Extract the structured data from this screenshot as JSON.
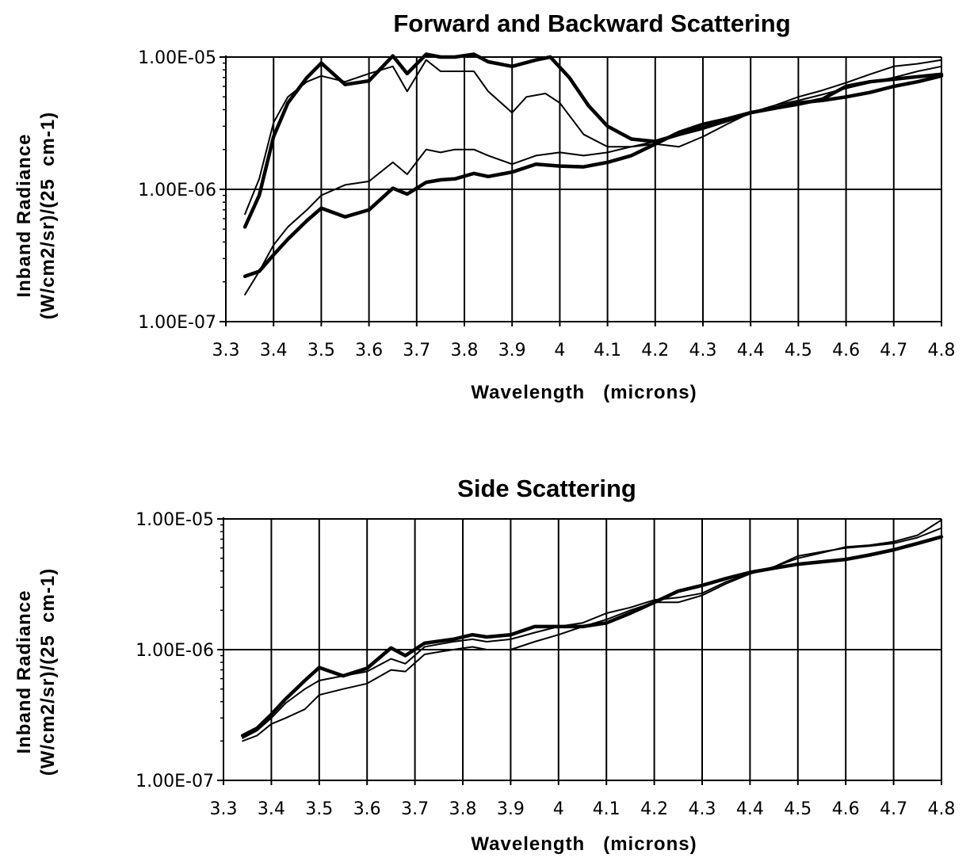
{
  "chart_data": [
    {
      "type": "line",
      "title": "Forward and Backward Scattering",
      "xlabel": "Wavelength   (microns)",
      "ylabel": [
        "Inband Radiance",
        "(W/cm2/sr)/(25  cm-1)"
      ],
      "yscale": "log",
      "xlim": [
        3.3,
        4.8
      ],
      "ylim": [
        1e-07,
        1e-05
      ],
      "xticks": [
        "3.3",
        "3.4",
        "3.5",
        "3.6",
        "3.7",
        "3.8",
        "3.9",
        "4",
        "4.1",
        "4.2",
        "4.3",
        "4.4",
        "4.5",
        "4.6",
        "4.7",
        "4.8"
      ],
      "yticks": [
        "1.00E-07",
        "1.00E-06",
        "1.00E-05"
      ],
      "grid": true,
      "series": [
        {
          "style": "thick",
          "points": [
            [
              3.34,
              5.2e-07
            ],
            [
              3.37,
              9e-07
            ],
            [
              3.4,
              2.5e-06
            ],
            [
              3.43,
              4.5e-06
            ],
            [
              3.47,
              7e-06
            ],
            [
              3.5,
              9e-06
            ],
            [
              3.55,
              6.2e-06
            ],
            [
              3.6,
              6.6e-06
            ],
            [
              3.65,
              1.02e-05
            ],
            [
              3.68,
              7.5e-06
            ],
            [
              3.72,
              1.05e-05
            ],
            [
              3.75,
              1e-05
            ],
            [
              3.78,
              1e-05
            ],
            [
              3.82,
              1.05e-05
            ],
            [
              3.85,
              9.2e-06
            ],
            [
              3.9,
              8.5e-06
            ],
            [
              3.95,
              9.5e-06
            ],
            [
              3.98,
              1e-05
            ],
            [
              4.02,
              7e-06
            ],
            [
              4.06,
              4.3e-06
            ],
            [
              4.1,
              3e-06
            ],
            [
              4.15,
              2.4e-06
            ],
            [
              4.2,
              2.3e-06
            ],
            [
              4.25,
              2.6e-06
            ],
            [
              4.3,
              2.9e-06
            ],
            [
              4.35,
              3.3e-06
            ],
            [
              4.4,
              3.8e-06
            ],
            [
              4.45,
              4.1e-06
            ],
            [
              4.5,
              4.5e-06
            ],
            [
              4.55,
              4.7e-06
            ],
            [
              4.6,
              5e-06
            ],
            [
              4.65,
              5.4e-06
            ],
            [
              4.7,
              6e-06
            ],
            [
              4.75,
              6.5e-06
            ],
            [
              4.8,
              7.2e-06
            ]
          ]
        },
        {
          "style": "thin",
          "points": [
            [
              3.34,
              6.5e-07
            ],
            [
              3.37,
              1.2e-06
            ],
            [
              3.4,
              3.2e-06
            ],
            [
              3.43,
              5e-06
            ],
            [
              3.47,
              6.5e-06
            ],
            [
              3.5,
              7.2e-06
            ],
            [
              3.55,
              6.5e-06
            ],
            [
              3.6,
              7.5e-06
            ],
            [
              3.65,
              8.5e-06
            ],
            [
              3.68,
              5.5e-06
            ],
            [
              3.72,
              9.5e-06
            ],
            [
              3.75,
              7.8e-06
            ],
            [
              3.78,
              7.8e-06
            ],
            [
              3.82,
              7.8e-06
            ],
            [
              3.85,
              5.5e-06
            ],
            [
              3.9,
              3.8e-06
            ],
            [
              3.93,
              5e-06
            ],
            [
              3.97,
              5.3e-06
            ],
            [
              4.0,
              4.5e-06
            ],
            [
              4.05,
              2.6e-06
            ],
            [
              4.1,
              2.1e-06
            ],
            [
              4.15,
              2.1e-06
            ],
            [
              4.2,
              2.2e-06
            ],
            [
              4.25,
              2.1e-06
            ],
            [
              4.3,
              2.5e-06
            ],
            [
              4.35,
              3.1e-06
            ],
            [
              4.4,
              3.8e-06
            ],
            [
              4.45,
              4.3e-06
            ],
            [
              4.5,
              5e-06
            ],
            [
              4.55,
              5.6e-06
            ],
            [
              4.6,
              6.4e-06
            ],
            [
              4.65,
              7.4e-06
            ],
            [
              4.7,
              8.5e-06
            ],
            [
              4.75,
              8.9e-06
            ],
            [
              4.8,
              9.5e-06
            ]
          ]
        },
        {
          "style": "thin",
          "points": [
            [
              3.34,
              1.6e-07
            ],
            [
              3.37,
              2.4e-07
            ],
            [
              3.4,
              3.8e-07
            ],
            [
              3.43,
              5.2e-07
            ],
            [
              3.47,
              7e-07
            ],
            [
              3.5,
              9e-07
            ],
            [
              3.55,
              1.08e-06
            ],
            [
              3.6,
              1.15e-06
            ],
            [
              3.65,
              1.6e-06
            ],
            [
              3.68,
              1.3e-06
            ],
            [
              3.72,
              2e-06
            ],
            [
              3.75,
              1.9e-06
            ],
            [
              3.78,
              2e-06
            ],
            [
              3.82,
              2e-06
            ],
            [
              3.85,
              1.8e-06
            ],
            [
              3.9,
              1.55e-06
            ],
            [
              3.95,
              1.8e-06
            ],
            [
              4.0,
              1.9e-06
            ],
            [
              4.05,
              1.8e-06
            ],
            [
              4.1,
              1.9e-06
            ],
            [
              4.15,
              2.1e-06
            ],
            [
              4.2,
              2.3e-06
            ],
            [
              4.25,
              2.6e-06
            ],
            [
              4.3,
              2.9e-06
            ],
            [
              4.35,
              3.4e-06
            ],
            [
              4.4,
              3.8e-06
            ],
            [
              4.45,
              4.3e-06
            ],
            [
              4.5,
              4.7e-06
            ],
            [
              4.55,
              5.2e-06
            ],
            [
              4.6,
              5.8e-06
            ],
            [
              4.65,
              6.4e-06
            ],
            [
              4.7,
              7e-06
            ],
            [
              4.75,
              7.8e-06
            ],
            [
              4.8,
              8.5e-06
            ]
          ]
        },
        {
          "style": "thick",
          "points": [
            [
              3.34,
              2.2e-07
            ],
            [
              3.37,
              2.4e-07
            ],
            [
              3.4,
              3.2e-07
            ],
            [
              3.43,
              4.2e-07
            ],
            [
              3.47,
              5.8e-07
            ],
            [
              3.5,
              7.2e-07
            ],
            [
              3.55,
              6.2e-07
            ],
            [
              3.6,
              7e-07
            ],
            [
              3.65,
              1.02e-06
            ],
            [
              3.68,
              9.2e-07
            ],
            [
              3.72,
              1.13e-06
            ],
            [
              3.75,
              1.18e-06
            ],
            [
              3.78,
              1.2e-06
            ],
            [
              3.82,
              1.32e-06
            ],
            [
              3.85,
              1.25e-06
            ],
            [
              3.9,
              1.35e-06
            ],
            [
              3.95,
              1.55e-06
            ],
            [
              4.0,
              1.5e-06
            ],
            [
              4.05,
              1.48e-06
            ],
            [
              4.1,
              1.6e-06
            ],
            [
              4.15,
              1.8e-06
            ],
            [
              4.2,
              2.2e-06
            ],
            [
              4.25,
              2.7e-06
            ],
            [
              4.3,
              3.1e-06
            ],
            [
              4.35,
              3.4e-06
            ],
            [
              4.4,
              3.8e-06
            ],
            [
              4.45,
              4.1e-06
            ],
            [
              4.5,
              4.4e-06
            ],
            [
              4.55,
              4.8e-06
            ],
            [
              4.6,
              6e-06
            ],
            [
              4.65,
              6.5e-06
            ],
            [
              4.7,
              6.8e-06
            ],
            [
              4.75,
              7.1e-06
            ],
            [
              4.8,
              7.4e-06
            ]
          ]
        }
      ]
    },
    {
      "type": "line",
      "title": "Side Scattering",
      "xlabel": "Wavelength   (microns)",
      "ylabel": [
        "Inband Radiance",
        "(W/cm2/sr)/(25  cm-1)"
      ],
      "yscale": "log",
      "xlim": [
        3.3,
        4.8
      ],
      "ylim": [
        1e-07,
        1e-05
      ],
      "xticks": [
        "3.3",
        "3.4",
        "3.5",
        "3.6",
        "3.7",
        "3.8",
        "3.9",
        "4",
        "4.1",
        "4.2",
        "4.3",
        "4.4",
        "4.5",
        "4.6",
        "4.7",
        "4.8"
      ],
      "yticks": [
        "1.00E-07",
        "1.00E-06",
        "1.00E-05"
      ],
      "grid": true,
      "series": [
        {
          "style": "thick",
          "points": [
            [
              3.34,
              2.2e-07
            ],
            [
              3.37,
              2.5e-07
            ],
            [
              3.4,
              3.2e-07
            ],
            [
              3.43,
              4.2e-07
            ],
            [
              3.47,
              5.8e-07
            ],
            [
              3.5,
              7.3e-07
            ],
            [
              3.55,
              6.3e-07
            ],
            [
              3.6,
              7.2e-07
            ],
            [
              3.65,
              1.03e-06
            ],
            [
              3.68,
              9e-07
            ],
            [
              3.72,
              1.12e-06
            ],
            [
              3.75,
              1.16e-06
            ],
            [
              3.78,
              1.2e-06
            ],
            [
              3.82,
              1.3e-06
            ],
            [
              3.85,
              1.25e-06
            ],
            [
              3.9,
              1.3e-06
            ],
            [
              3.95,
              1.5e-06
            ],
            [
              4.0,
              1.5e-06
            ],
            [
              4.05,
              1.5e-06
            ],
            [
              4.1,
              1.6e-06
            ],
            [
              4.15,
              1.9e-06
            ],
            [
              4.2,
              2.3e-06
            ],
            [
              4.25,
              2.8e-06
            ],
            [
              4.3,
              3.1e-06
            ],
            [
              4.35,
              3.5e-06
            ],
            [
              4.4,
              3.9e-06
            ],
            [
              4.45,
              4.2e-06
            ],
            [
              4.5,
              4.5e-06
            ],
            [
              4.55,
              4.7e-06
            ],
            [
              4.6,
              4.9e-06
            ],
            [
              4.65,
              5.3e-06
            ],
            [
              4.7,
              5.8e-06
            ],
            [
              4.75,
              6.5e-06
            ],
            [
              4.8,
              7.3e-06
            ]
          ]
        },
        {
          "style": "thin",
          "points": [
            [
              3.34,
              2.1e-07
            ],
            [
              3.37,
              2.4e-07
            ],
            [
              3.4,
              3e-07
            ],
            [
              3.43,
              3.9e-07
            ],
            [
              3.47,
              5e-07
            ],
            [
              3.5,
              5.8e-07
            ],
            [
              3.55,
              6.3e-07
            ],
            [
              3.6,
              6.8e-07
            ],
            [
              3.65,
              8.5e-07
            ],
            [
              3.68,
              7.8e-07
            ],
            [
              3.72,
              1.05e-06
            ],
            [
              3.75,
              1.1e-06
            ],
            [
              3.78,
              1.15e-06
            ],
            [
              3.82,
              1.2e-06
            ],
            [
              3.85,
              1.15e-06
            ],
            [
              3.9,
              1.2e-06
            ],
            [
              3.95,
              1.35e-06
            ],
            [
              4.0,
              1.5e-06
            ],
            [
              4.05,
              1.6e-06
            ],
            [
              4.1,
              1.9e-06
            ],
            [
              4.15,
              2.1e-06
            ],
            [
              4.2,
              2.4e-06
            ],
            [
              4.25,
              2.5e-06
            ],
            [
              4.3,
              2.7e-06
            ],
            [
              4.35,
              3.3e-06
            ],
            [
              4.4,
              3.8e-06
            ],
            [
              4.45,
              4.3e-06
            ],
            [
              4.5,
              5.2e-06
            ],
            [
              4.55,
              5.6e-06
            ],
            [
              4.6,
              6e-06
            ],
            [
              4.65,
              6.2e-06
            ],
            [
              4.7,
              6.5e-06
            ],
            [
              4.75,
              7.2e-06
            ],
            [
              4.8,
              8.5e-06
            ]
          ]
        },
        {
          "style": "thin",
          "points": [
            [
              3.34,
              2e-07
            ],
            [
              3.37,
              2.2e-07
            ],
            [
              3.4,
              2.7e-07
            ],
            [
              3.43,
              3e-07
            ],
            [
              3.47,
              3.5e-07
            ],
            [
              3.5,
              4.5e-07
            ],
            [
              3.55,
              5e-07
            ],
            [
              3.6,
              5.5e-07
            ],
            [
              3.65,
              7e-07
            ],
            [
              3.68,
              6.8e-07
            ],
            [
              3.72,
              9.2e-07
            ],
            [
              3.75,
              9.6e-07
            ],
            [
              3.78,
              1e-06
            ],
            [
              3.82,
              1.05e-06
            ],
            [
              3.85,
              1e-06
            ],
            [
              3.9,
              1e-06
            ],
            [
              3.95,
              1.15e-06
            ],
            [
              4.0,
              1.3e-06
            ],
            [
              4.05,
              1.5e-06
            ],
            [
              4.1,
              1.7e-06
            ],
            [
              4.15,
              2e-06
            ],
            [
              4.2,
              2.3e-06
            ],
            [
              4.25,
              2.3e-06
            ],
            [
              4.3,
              2.6e-06
            ],
            [
              4.35,
              3.2e-06
            ],
            [
              4.4,
              3.8e-06
            ],
            [
              4.45,
              4.3e-06
            ],
            [
              4.5,
              5e-06
            ],
            [
              4.55,
              5.5e-06
            ],
            [
              4.6,
              6.1e-06
            ],
            [
              4.65,
              6.3e-06
            ],
            [
              4.7,
              6.7e-06
            ],
            [
              4.75,
              7.5e-06
            ],
            [
              4.8,
              9.8e-06
            ]
          ]
        }
      ]
    }
  ]
}
